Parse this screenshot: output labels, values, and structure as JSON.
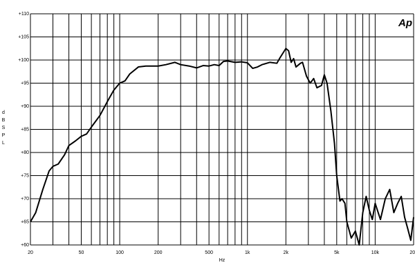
{
  "chart_data": {
    "type": "line",
    "logo": "Ap",
    "x_label": "Hz",
    "y_label": "dB SPL",
    "xscale": "log",
    "xlim": [
      20,
      20000
    ],
    "ylim": [
      60,
      110
    ],
    "grid": true,
    "xticks": [
      20,
      {
        "value": 30,
        "label": null
      },
      {
        "value": 40,
        "label": null
      },
      50,
      {
        "value": 60,
        "label": null
      },
      {
        "value": 70,
        "label": null
      },
      {
        "value": 80,
        "label": null
      },
      {
        "value": 90,
        "label": null
      },
      100,
      200,
      {
        "value": 300,
        "label": null
      },
      {
        "value": 400,
        "label": null
      },
      500,
      {
        "value": 600,
        "label": null
      },
      {
        "value": 700,
        "label": null
      },
      {
        "value": 800,
        "label": null
      },
      {
        "value": 900,
        "label": null
      },
      {
        "value": 1000,
        "label": "1k"
      },
      {
        "value": 2000,
        "label": "2k"
      },
      {
        "value": 3000,
        "label": null
      },
      {
        "value": 4000,
        "label": null
      },
      {
        "value": 5000,
        "label": "5k"
      },
      {
        "value": 6000,
        "label": null
      },
      {
        "value": 7000,
        "label": null
      },
      {
        "value": 8000,
        "label": null
      },
      {
        "value": 9000,
        "label": null
      },
      {
        "value": 10000,
        "label": "10k"
      },
      {
        "value": 20000,
        "label": "20k"
      }
    ],
    "yticks": [
      {
        "value": 60,
        "label": "+60"
      },
      {
        "value": 65,
        "label": "+65"
      },
      {
        "value": 70,
        "label": "+70"
      },
      {
        "value": 75,
        "label": "+75"
      },
      {
        "value": 80,
        "label": "+80"
      },
      {
        "value": 85,
        "label": "+85"
      },
      {
        "value": 90,
        "label": "+90"
      },
      {
        "value": 95,
        "label": "+95"
      },
      {
        "value": 100,
        "label": "+100"
      },
      {
        "value": 105,
        "label": "+105"
      },
      {
        "value": 110,
        "label": "+110"
      }
    ],
    "x": [
      20,
      22,
      25,
      28,
      30,
      33,
      37,
      40,
      45,
      50,
      55,
      60,
      70,
      80,
      90,
      100,
      110,
      120,
      140,
      160,
      200,
      230,
      270,
      300,
      350,
      400,
      450,
      500,
      550,
      600,
      650,
      700,
      800,
      900,
      1000,
      1100,
      1200,
      1300,
      1500,
      1700,
      1800,
      2000,
      2100,
      2200,
      2300,
      2400,
      2600,
      2700,
      2900,
      3100,
      3300,
      3500,
      3800,
      4000,
      4200,
      4500,
      4800,
      5000,
      5300,
      5500,
      5800,
      6000,
      6500,
      7000,
      7500,
      8000,
      8500,
      9000,
      9500,
      10000,
      11000,
      12000,
      13000,
      14000,
      15000,
      16000,
      17000,
      18000,
      19000,
      20000
    ],
    "series": [
      {
        "color": "#000000",
        "values": [
          65,
          67,
          72,
          76,
          77,
          77.5,
          79.5,
          81.5,
          82.5,
          83.5,
          84,
          85.5,
          88,
          91,
          93.5,
          95,
          95.5,
          97,
          98.5,
          98.7,
          98.7,
          99,
          99.5,
          99,
          98.7,
          98.3,
          98.8,
          98.7,
          99,
          98.8,
          99.7,
          99.8,
          99.5,
          99.6,
          99.4,
          98.2,
          98.5,
          99,
          99.5,
          99.3,
          100.5,
          102.5,
          102,
          99.5,
          100.3,
          98.5,
          99.3,
          99.5,
          96.5,
          95,
          96,
          94,
          94.5,
          96.8,
          95,
          89,
          82,
          75,
          69.5,
          70,
          69,
          65,
          61.5,
          63,
          60,
          67,
          70.5,
          67.5,
          65.5,
          69,
          65.5,
          70,
          72,
          67,
          69,
          70.5,
          66,
          63.5,
          61,
          66
        ]
      }
    ]
  }
}
